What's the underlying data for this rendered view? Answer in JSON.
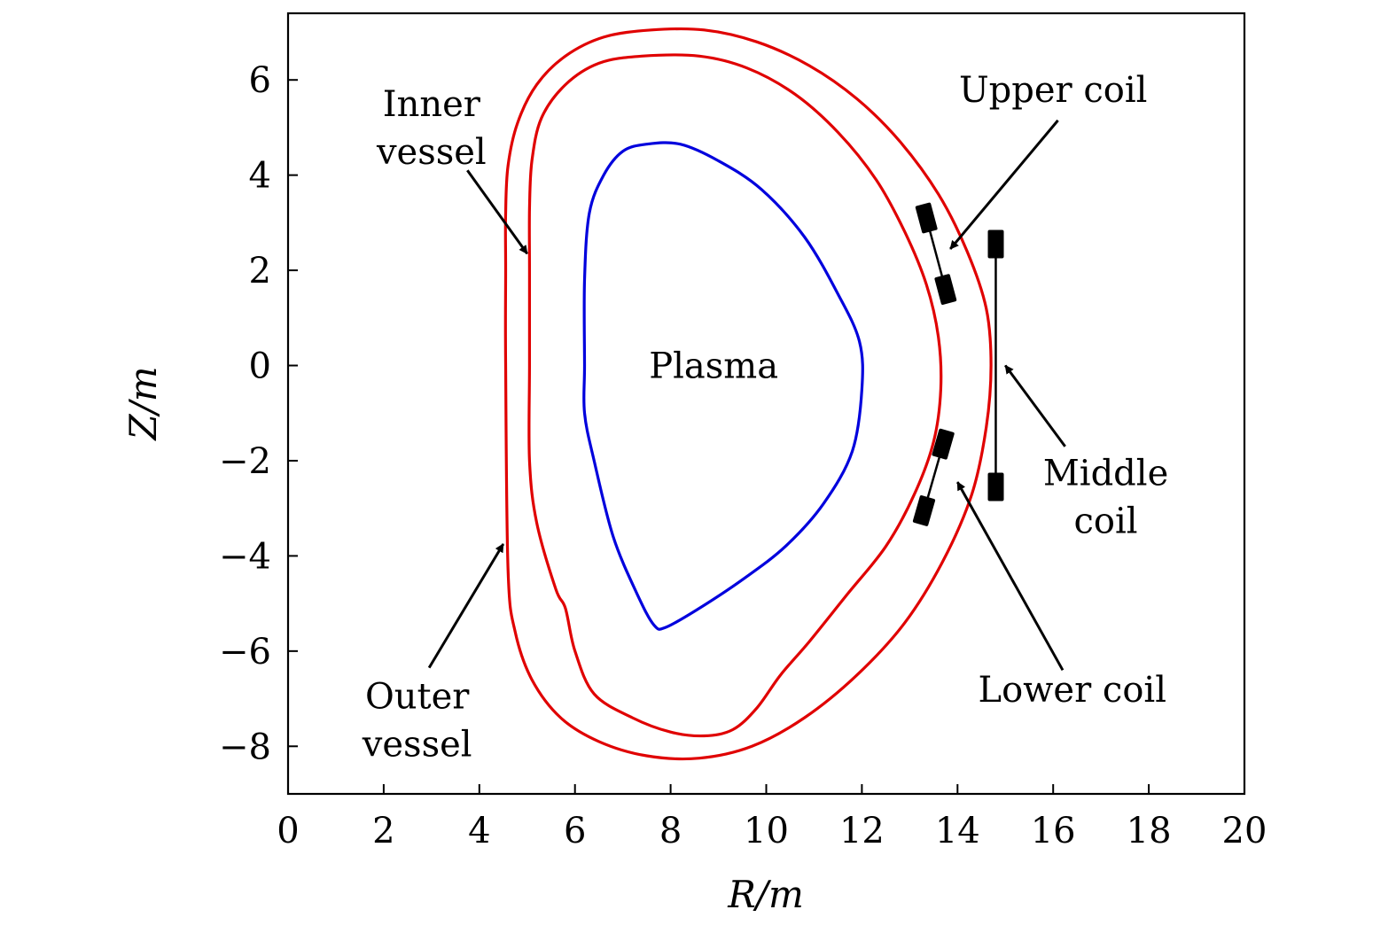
{
  "chart_data": {
    "type": "line",
    "title": "",
    "xlabel": "R/m",
    "ylabel": "Z/m",
    "xlim": [
      0,
      20
    ],
    "ylim": [
      -9,
      7.4
    ],
    "xticks": [
      0,
      2,
      4,
      6,
      8,
      10,
      12,
      14,
      16,
      18,
      20
    ],
    "yticks": [
      6,
      4,
      2,
      0,
      -2,
      -4,
      -6,
      -8
    ],
    "xtick_labels": [
      "0",
      "2",
      "4",
      "6",
      "8",
      "10",
      "12",
      "14",
      "16",
      "18",
      "20"
    ],
    "ytick_labels": [
      "6",
      "4",
      "2",
      "0",
      "−2",
      "−4",
      "−6",
      "−8"
    ],
    "grid": false,
    "colors": {
      "vessel": "#e00000",
      "plasma": "#0000dd",
      "coil": "#000000",
      "axis": "#000000"
    },
    "series": [
      {
        "name": "Outer vessel",
        "closed": true,
        "r": [
          4.55,
          4.55,
          4.55,
          4.6,
          4.8,
          5.2,
          5.8,
          6.6,
          7.6,
          8.7,
          9.8,
          10.9,
          11.9,
          12.8,
          13.6,
          14.2,
          14.6,
          14.7,
          14.6,
          14.3,
          13.7,
          12.9,
          11.9,
          10.8,
          9.7,
          8.6,
          7.5,
          6.5,
          5.7,
          5.1,
          4.75,
          4.6
        ],
        "z": [
          0,
          2.0,
          3.2,
          4.2,
          5.1,
          5.9,
          6.5,
          6.9,
          7.05,
          7.05,
          6.8,
          6.3,
          5.6,
          4.7,
          3.6,
          2.4,
          1.2,
          0,
          -1.3,
          -2.7,
          -4.1,
          -5.4,
          -6.5,
          -7.4,
          -8.0,
          -8.25,
          -8.2,
          -7.9,
          -7.4,
          -6.6,
          -5.6,
          -4.3
        ]
      },
      {
        "name": "Inner vessel",
        "closed": true,
        "r": [
          5.05,
          5.05,
          5.05,
          5.1,
          5.3,
          5.8,
          6.5,
          7.4,
          8.6,
          9.6,
          10.6,
          11.5,
          12.3,
          12.9,
          13.35,
          13.6,
          13.65,
          13.5,
          13.1,
          12.5,
          11.7,
          10.9,
          10.3,
          9.8,
          9.3,
          8.7,
          8.0,
          7.2,
          6.4,
          6.0,
          5.8,
          5.6,
          5.2,
          5.05
        ],
        "z": [
          0,
          2.0,
          3.3,
          4.3,
          5.2,
          5.9,
          6.35,
          6.5,
          6.5,
          6.25,
          5.7,
          4.9,
          3.9,
          2.8,
          1.7,
          0.6,
          -0.5,
          -1.6,
          -2.7,
          -3.8,
          -4.8,
          -5.8,
          -6.5,
          -7.2,
          -7.65,
          -7.78,
          -7.7,
          -7.4,
          -6.9,
          -6.0,
          -5.1,
          -4.7,
          -3.3,
          -2.0
        ]
      },
      {
        "name": "Plasma",
        "closed": true,
        "r": [
          6.2,
          6.2,
          6.3,
          6.6,
          7.0,
          7.5,
          8.2,
          9.0,
          9.9,
          10.8,
          11.5,
          11.95,
          12.0,
          11.8,
          11.2,
          10.4,
          9.5,
          8.6,
          7.9,
          7.65,
          7.3,
          6.8,
          6.4,
          6.2
        ],
        "z": [
          0,
          1.8,
          3.2,
          4.0,
          4.5,
          4.65,
          4.65,
          4.3,
          3.7,
          2.7,
          1.5,
          0.5,
          -0.5,
          -1.8,
          -2.9,
          -3.8,
          -4.5,
          -5.1,
          -5.5,
          -5.45,
          -4.8,
          -3.6,
          -2.0,
          -1.0
        ]
      }
    ],
    "coils": [
      {
        "name": "Upper coil",
        "r": [
          13.35,
          13.75
        ],
        "z": [
          3.1,
          1.6
        ]
      },
      {
        "name": "Middle coil",
        "r": [
          14.8,
          14.8
        ],
        "z": [
          2.55,
          -2.55
        ]
      },
      {
        "name": "Lower coil",
        "r": [
          13.7,
          13.3
        ],
        "z": [
          -1.65,
          -3.05
        ]
      }
    ],
    "annotations": [
      {
        "id": "inner",
        "lines": [
          "Inner",
          "vessel"
        ],
        "text_at": [
          3.0,
          5.0
        ],
        "arrow_from": [
          3.75,
          4.1
        ],
        "arrow_to": [
          5.0,
          2.35
        ]
      },
      {
        "id": "outer",
        "lines": [
          "Outer",
          "vessel"
        ],
        "text_at": [
          2.7,
          -7.45
        ],
        "arrow_from": [
          2.95,
          -6.35
        ],
        "arrow_to": [
          4.5,
          -3.75
        ]
      },
      {
        "id": "plasma",
        "lines": [
          "Plasma"
        ],
        "text_at": [
          8.9,
          0.0
        ]
      },
      {
        "id": "upper",
        "lines": [
          "Upper coil"
        ],
        "text_at": [
          16.0,
          5.8
        ],
        "arrow_from": [
          16.1,
          5.15
        ],
        "arrow_to": [
          13.85,
          2.45
        ]
      },
      {
        "id": "middle",
        "lines": [
          "Middle",
          "coil"
        ],
        "text_at": [
          17.1,
          -2.75
        ],
        "arrow_from": [
          16.25,
          -1.7
        ],
        "arrow_to": [
          15.0,
          0.0
        ]
      },
      {
        "id": "lower",
        "lines": [
          "Lower coil"
        ],
        "text_at": [
          16.4,
          -6.8
        ],
        "arrow_from": [
          16.2,
          -6.4
        ],
        "arrow_to": [
          14.0,
          -2.45
        ]
      }
    ]
  }
}
